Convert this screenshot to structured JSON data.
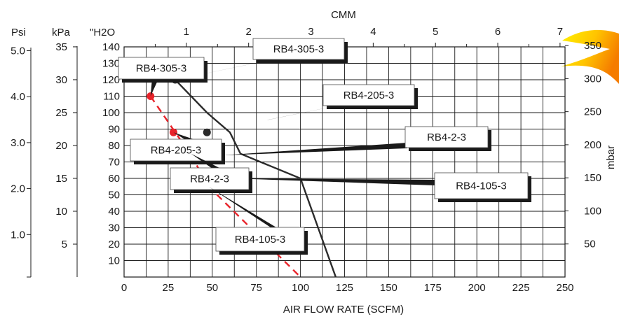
{
  "chart_data": {
    "type": "line",
    "title": "",
    "xlabel": "AIR FLOW RATE (SCFM)",
    "xlim": [
      0,
      250
    ],
    "x_ticks": [
      "0",
      "25",
      "50",
      "75",
      "100",
      "125",
      "150",
      "175",
      "200",
      "225",
      "250"
    ],
    "ylabel": "\"H2O",
    "ylim": [
      0,
      140
    ],
    "y_ticks": [
      "10",
      "20",
      "30",
      "40",
      "50",
      "60",
      "70",
      "80",
      "90",
      "100",
      "110",
      "120",
      "130",
      "140"
    ],
    "grid": true,
    "secondary_axes": {
      "top": {
        "label": "CMM",
        "min": 0,
        "max": 7.08,
        "ticks": [
          "1",
          "2",
          "3",
          "4",
          "5",
          "6",
          "7"
        ]
      },
      "right": {
        "label": "mbar",
        "ticks": [
          "50",
          "100",
          "150",
          "200",
          "250",
          "300",
          "350"
        ]
      },
      "left_kpa": {
        "label": "kPa",
        "ticks": [
          "5",
          "10",
          "15",
          "20",
          "25",
          "30",
          "35"
        ]
      },
      "left_psi": {
        "label": "Psi",
        "ticks": [
          "1.0",
          "2.0",
          "3.0",
          "4.0",
          "5.0"
        ]
      }
    },
    "series": [
      {
        "style": "solid",
        "color": "#2b2b2b",
        "x": [
          29,
          47,
          60,
          66,
          100,
          120
        ],
        "y": [
          120,
          100,
          88,
          75,
          60,
          0
        ],
        "points": [
          {
            "x": 29,
            "y": 120,
            "label": "RB4-305-3"
          },
          {
            "x": 47,
            "y": 88,
            "label": "RB4-205-3"
          },
          {
            "x": 55,
            "y": 74,
            "label": "RB4-2-3"
          },
          {
            "x": 61,
            "y": 60,
            "label": "RB4-105-3"
          }
        ]
      },
      {
        "style": "dashed",
        "color": "#e8232a",
        "x": [
          15,
          29,
          38,
          48,
          100
        ],
        "y": [
          110,
          88,
          74,
          55,
          0
        ],
        "points": [
          {
            "x": 15,
            "y": 110,
            "label": "RB4-305-3"
          },
          {
            "x": 28,
            "y": 88,
            "label": "RB4-205-3"
          },
          {
            "x": 38,
            "y": 75,
            "label": "RB4-2-3"
          },
          {
            "x": 48,
            "y": 55,
            "label": "RB4-105-3"
          }
        ]
      }
    ]
  }
}
